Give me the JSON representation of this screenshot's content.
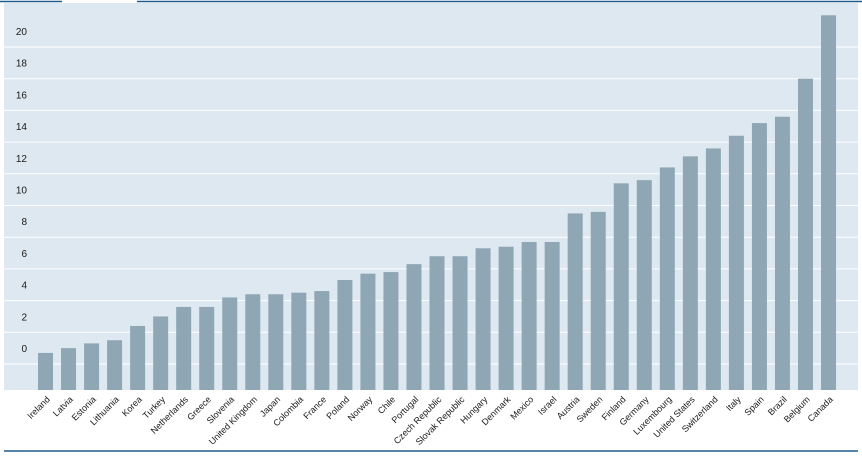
{
  "chart_data": {
    "type": "bar",
    "title": "",
    "xlabel": "",
    "ylabel": "",
    "ylim": [
      0,
      22
    ],
    "yticks": [
      0,
      2,
      4,
      6,
      8,
      10,
      12,
      14,
      16,
      18,
      20
    ],
    "grid": true,
    "colors": {
      "bar": "#8fa7b5",
      "panel": "#dde8f0",
      "grid": "#ffffff",
      "rule": "#1f5a8c",
      "text": "#1a1a1a"
    },
    "categories": [
      "Ireland",
      "Latvia",
      "Estonia",
      "Lithuania",
      "Korea",
      "Turkey",
      "Netherlands",
      "Greece",
      "Slovenia",
      "United Kingdom",
      "Japan",
      "Colombia",
      "France",
      "Poland",
      "Norway",
      "Chile",
      "Portugal",
      "Czech Republic",
      "Slovak Republic",
      "Hungary",
      "Denmark",
      "Mexico",
      "Israel",
      "Austria",
      "Sweden",
      "Finland",
      "Germany",
      "Luxembourg",
      "United States",
      "Switzerland",
      "Italy",
      "Spain",
      "Brazil",
      "Belgium",
      "Canada"
    ],
    "values": [
      0.7,
      1.0,
      1.3,
      1.5,
      2.4,
      3.0,
      3.6,
      3.6,
      4.2,
      4.4,
      4.4,
      4.5,
      4.6,
      5.3,
      5.7,
      5.8,
      6.3,
      6.8,
      6.8,
      7.3,
      7.4,
      7.7,
      7.7,
      9.5,
      9.6,
      11.4,
      11.6,
      12.4,
      13.1,
      13.6,
      14.4,
      15.2,
      15.6,
      18.0,
      22.0
    ]
  }
}
